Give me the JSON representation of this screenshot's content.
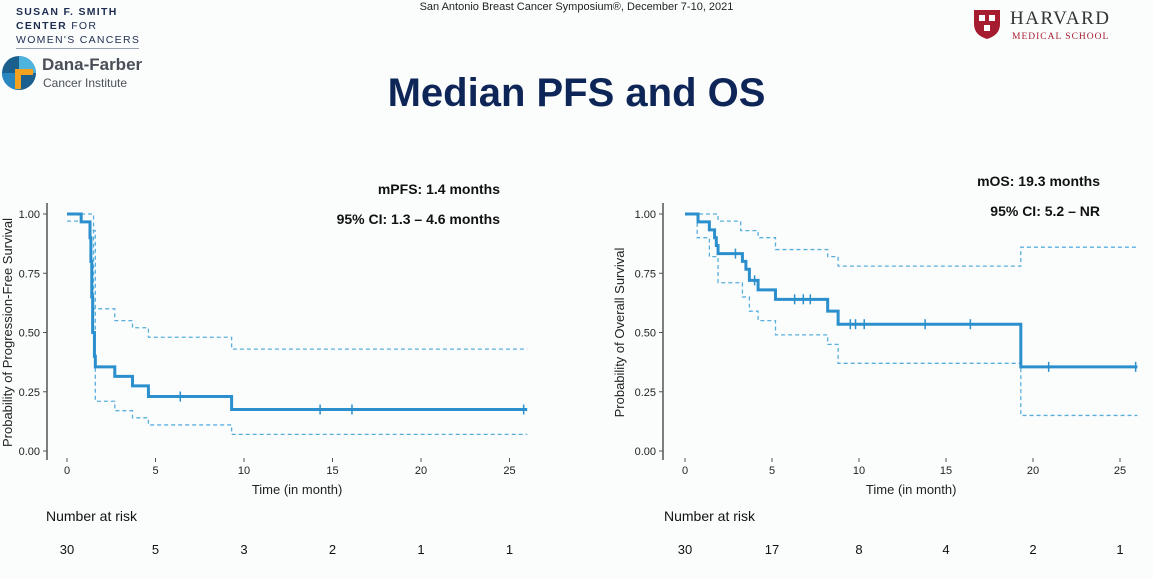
{
  "header": {
    "conference": "San Antonio Breast Cancer Symposium®, December 7-10, 2021",
    "title": "Median PFS and OS"
  },
  "logos": {
    "smith": [
      "SUSAN F. SMITH",
      "CENTER",
      "FOR",
      "WOMEN'S CANCERS"
    ],
    "dana_farber": {
      "name": "Dana-Farber",
      "sub": "Cancer Institute"
    },
    "harvard": {
      "name": "HARVARD",
      "sub": "MEDICAL SCHOOL"
    }
  },
  "colors": {
    "curve": "#2a8fcc",
    "ci": "#5aaedc",
    "title": "#0e2558",
    "harvard_red": "#a51c30"
  },
  "chart_data": [
    {
      "type": "line",
      "subtype": "kaplan-meier",
      "annotation": [
        "mPFS: 1.4 months",
        "95% CI: 1.3 – 4.6 months"
      ],
      "xlabel": "Time (in month)",
      "ylabel": "Probability of Progression-Free Survival",
      "xlim": [
        0,
        26
      ],
      "ylim": [
        0,
        1
      ],
      "xticks": [
        "0",
        "5",
        "10",
        "15",
        "20",
        "25"
      ],
      "yticks": [
        "0.00",
        "0.25",
        "0.50",
        "0.75",
        "1.00"
      ],
      "survival": [
        [
          0,
          1
        ],
        [
          0.8,
          0.967
        ],
        [
          1.3,
          0.9
        ],
        [
          1.35,
          0.8
        ],
        [
          1.4,
          0.65
        ],
        [
          1.45,
          0.5
        ],
        [
          1.55,
          0.4
        ],
        [
          1.6,
          0.355
        ],
        [
          2.7,
          0.315
        ],
        [
          3.7,
          0.275
        ],
        [
          4.6,
          0.23
        ],
        [
          9.3,
          0.175
        ],
        [
          26,
          0.175
        ]
      ],
      "upper_ci": [
        [
          0,
          1
        ],
        [
          1.5,
          0.6
        ],
        [
          2.7,
          0.55
        ],
        [
          3.7,
          0.52
        ],
        [
          4.6,
          0.48
        ],
        [
          9.3,
          0.43
        ],
        [
          26,
          0.43
        ]
      ],
      "lower_ci": [
        [
          0,
          0.97
        ],
        [
          1.3,
          0.93
        ],
        [
          1.6,
          0.21
        ],
        [
          2.7,
          0.17
        ],
        [
          3.7,
          0.14
        ],
        [
          4.6,
          0.11
        ],
        [
          9.3,
          0.07
        ],
        [
          26,
          0.07
        ]
      ],
      "censored": [
        [
          6.4,
          0.23
        ],
        [
          14.3,
          0.175
        ],
        [
          16.1,
          0.175
        ],
        [
          25.8,
          0.175
        ]
      ],
      "risk_table": {
        "label": "Number at risk",
        "times": [
          0,
          5,
          10,
          15,
          20,
          25
        ],
        "values": [
          "30",
          "5",
          "3",
          "2",
          "1",
          "1"
        ]
      }
    },
    {
      "type": "line",
      "subtype": "kaplan-meier",
      "annotation": [
        "mOS: 19.3 months",
        "95% CI: 5.2 – NR"
      ],
      "xlabel": "Time (in month)",
      "ylabel": "Probability of Overall Survival",
      "xlim": [
        0,
        26
      ],
      "ylim": [
        0,
        1
      ],
      "xticks": [
        "0",
        "5",
        "10",
        "15",
        "20",
        "25"
      ],
      "yticks": [
        "0.00",
        "0.25",
        "0.50",
        "0.75",
        "1.00"
      ],
      "survival": [
        [
          0,
          1
        ],
        [
          0.75,
          0.967
        ],
        [
          1.4,
          0.933
        ],
        [
          1.7,
          0.9
        ],
        [
          1.8,
          0.867
        ],
        [
          1.9,
          0.833
        ],
        [
          3.3,
          0.8
        ],
        [
          3.5,
          0.767
        ],
        [
          3.7,
          0.72
        ],
        [
          4.2,
          0.68
        ],
        [
          5.2,
          0.64
        ],
        [
          8.2,
          0.59
        ],
        [
          8.8,
          0.535
        ],
        [
          19.3,
          0.355
        ],
        [
          26,
          0.355
        ]
      ],
      "upper_ci": [
        [
          0,
          1
        ],
        [
          1.9,
          0.97
        ],
        [
          3.2,
          0.93
        ],
        [
          4.2,
          0.9
        ],
        [
          5.2,
          0.85
        ],
        [
          8.2,
          0.82
        ],
        [
          8.8,
          0.78
        ],
        [
          19.3,
          0.86
        ],
        [
          26,
          0.86
        ]
      ],
      "lower_ci": [
        [
          0,
          1
        ],
        [
          0.7,
          0.9
        ],
        [
          1.4,
          0.82
        ],
        [
          1.9,
          0.71
        ],
        [
          3.3,
          0.65
        ],
        [
          3.7,
          0.59
        ],
        [
          4.2,
          0.55
        ],
        [
          5.2,
          0.49
        ],
        [
          8.2,
          0.45
        ],
        [
          8.8,
          0.37
        ],
        [
          19.3,
          0.15
        ],
        [
          26,
          0.15
        ]
      ],
      "censored": [
        [
          2.9,
          0.833
        ],
        [
          4.0,
          0.72
        ],
        [
          6.3,
          0.64
        ],
        [
          6.8,
          0.64
        ],
        [
          7.2,
          0.64
        ],
        [
          9.5,
          0.535
        ],
        [
          9.8,
          0.535
        ],
        [
          10.3,
          0.535
        ],
        [
          13.8,
          0.535
        ],
        [
          16.4,
          0.535
        ],
        [
          20.9,
          0.355
        ],
        [
          25.9,
          0.355
        ]
      ],
      "risk_table": {
        "label": "Number at risk",
        "times": [
          0,
          5,
          10,
          15,
          20,
          25
        ],
        "values": [
          "30",
          "17",
          "8",
          "4",
          "2",
          "1"
        ]
      }
    }
  ]
}
